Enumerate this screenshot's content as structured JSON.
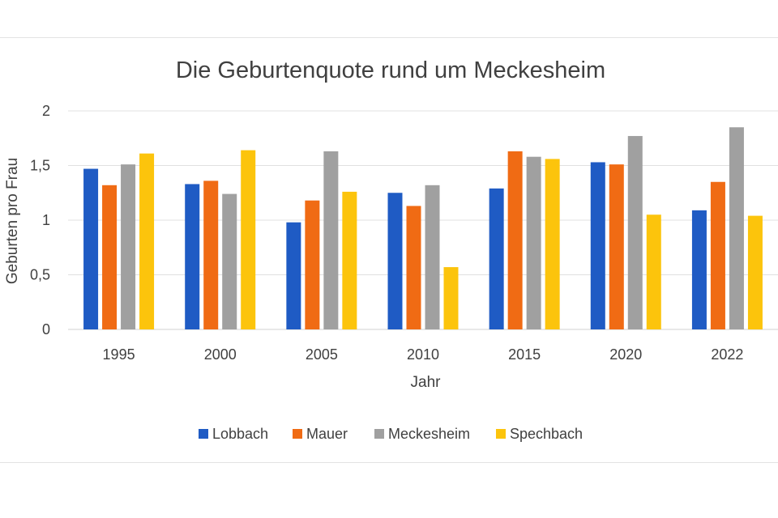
{
  "chart_data": {
    "type": "bar",
    "title": "Die Geburtenquote rund um Meckesheim",
    "xlabel": "Jahr",
    "ylabel": "Geburten pro Frau",
    "categories": [
      "1995",
      "2000",
      "2005",
      "2010",
      "2015",
      "2020",
      "2022"
    ],
    "ylim": [
      0,
      2
    ],
    "yticks": [
      {
        "value": 0,
        "label": "0"
      },
      {
        "value": 0.5,
        "label": "0,5"
      },
      {
        "value": 1,
        "label": "1"
      },
      {
        "value": 1.5,
        "label": "1,5"
      },
      {
        "value": 2,
        "label": "2"
      }
    ],
    "grid": true,
    "legend_position": "bottom",
    "series": [
      {
        "name": "Lobbach",
        "color": "#1f5bc4",
        "values": [
          1.47,
          1.33,
          0.98,
          1.25,
          1.29,
          1.53,
          1.09
        ]
      },
      {
        "name": "Mauer",
        "color": "#f06b14",
        "values": [
          1.32,
          1.36,
          1.18,
          1.13,
          1.63,
          1.51,
          1.35
        ]
      },
      {
        "name": "Meckesheim",
        "color": "#a0a0a0",
        "values": [
          1.51,
          1.24,
          1.63,
          1.32,
          1.58,
          1.77,
          1.85
        ]
      },
      {
        "name": "Spechbach",
        "color": "#fcc40c",
        "values": [
          1.61,
          1.64,
          1.26,
          0.57,
          1.56,
          1.05,
          1.04
        ]
      }
    ]
  }
}
